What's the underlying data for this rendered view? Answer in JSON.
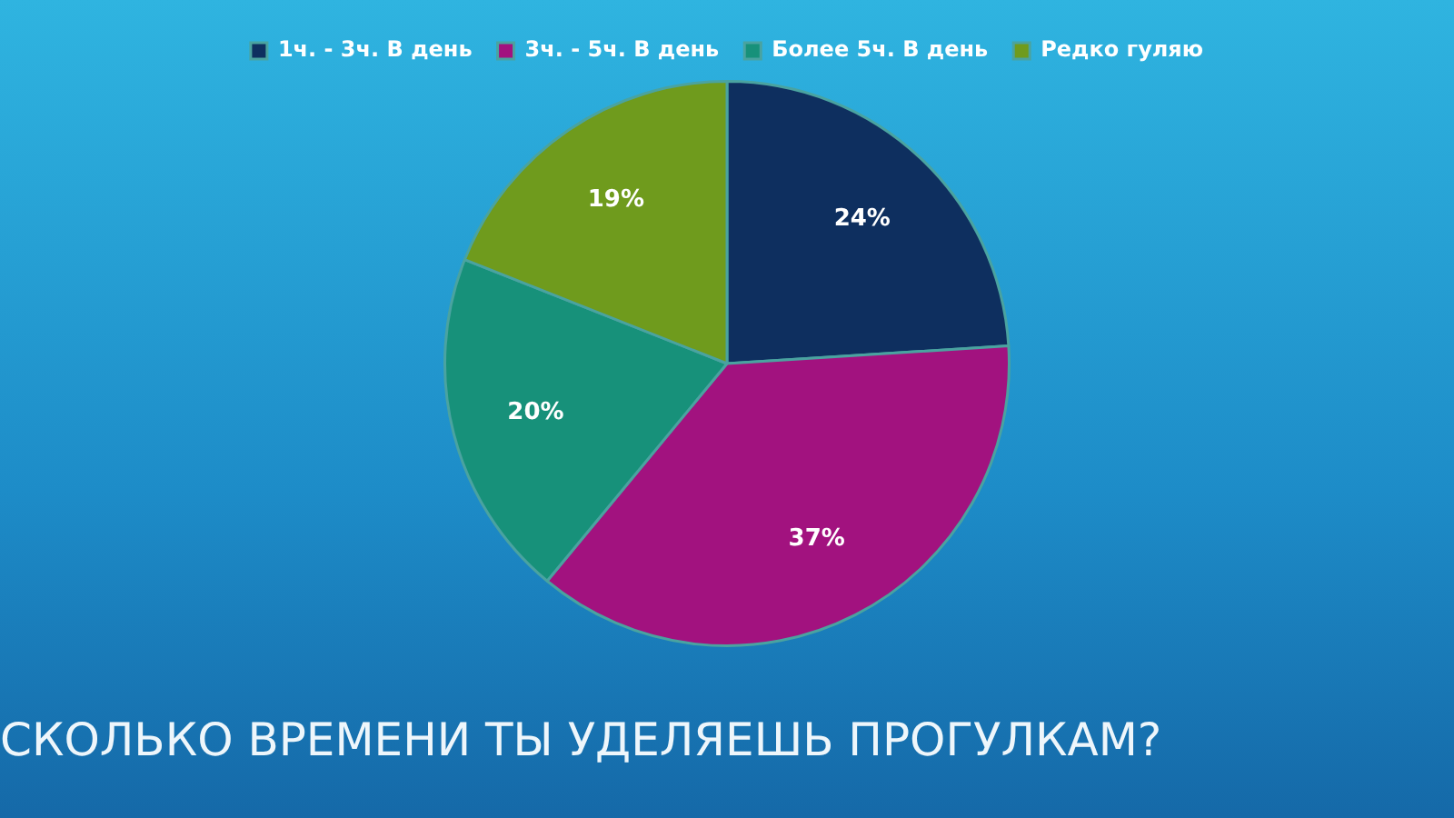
{
  "chart_data": {
    "type": "pie",
    "title": "СКОЛЬКО ВРЕМЕНИ ТЫ УДЕЛЯЕШЬ ПРОГУЛКАМ?",
    "categories": [
      "1ч. - 3ч. В день",
      "3ч. - 5ч. В день",
      "Более 5ч. В день",
      "Редко гуляю"
    ],
    "values": [
      24,
      37,
      20,
      19
    ],
    "value_labels": [
      "24%",
      "37%",
      "20%",
      "19%"
    ],
    "colors": [
      "#0e2f5f",
      "#a2127f",
      "#17917a",
      "#6f9b1d"
    ],
    "legend": "top"
  }
}
